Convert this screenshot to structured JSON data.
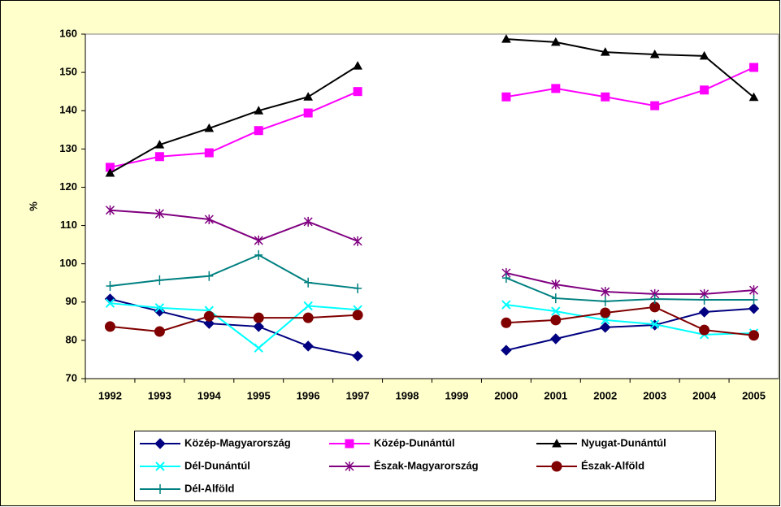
{
  "chart_data": {
    "type": "line",
    "ylabel": "%",
    "categories": [
      "1992",
      "1993",
      "1994",
      "1995",
      "1996",
      "1997",
      "1998",
      "1999",
      "2000",
      "2001",
      "2002",
      "2003",
      "2004",
      "2005"
    ],
    "ylim": [
      70,
      160
    ],
    "yticks": [
      70,
      80,
      90,
      100,
      110,
      120,
      130,
      140,
      150,
      160
    ],
    "series": [
      {
        "name": "Közép-Magyarország",
        "color": "#000080",
        "marker": "diamond",
        "values": [
          90.8,
          87.6,
          84.4,
          83.6,
          78.5,
          75.9,
          null,
          null,
          77.4,
          80.4,
          83.4,
          84.0,
          87.4,
          88.3
        ]
      },
      {
        "name": "Közép-Dunántúl",
        "color": "#FF00FF",
        "marker": "square",
        "values": [
          125.2,
          128.0,
          129.0,
          134.8,
          139.4,
          145.0,
          null,
          null,
          143.6,
          145.8,
          143.6,
          141.3,
          145.4,
          151.3
        ]
      },
      {
        "name": "Nyugat-Dunántúl",
        "color": "#000000",
        "marker": "triangle",
        "values": [
          123.7,
          131.1,
          135.4,
          140.0,
          143.6,
          151.7,
          null,
          null,
          158.7,
          157.9,
          155.3,
          154.7,
          154.3,
          143.5
        ]
      },
      {
        "name": "Dél-Dunántúl",
        "color": "#00FFFF",
        "marker": "x",
        "values": [
          89.7,
          88.5,
          87.8,
          78.0,
          89.0,
          88.0,
          null,
          null,
          89.3,
          87.6,
          85.3,
          84.2,
          81.5,
          81.9
        ]
      },
      {
        "name": "Észak-Magyarország",
        "color": "#800080",
        "marker": "star",
        "values": [
          114.0,
          113.1,
          111.6,
          106.1,
          111.0,
          105.9,
          null,
          null,
          97.6,
          94.6,
          92.7,
          92.1,
          92.1,
          93.1
        ]
      },
      {
        "name": "Észak-Alföld",
        "color": "#800000",
        "marker": "circle",
        "values": [
          83.6,
          82.3,
          86.3,
          85.9,
          85.9,
          86.6,
          null,
          null,
          84.6,
          85.3,
          87.2,
          88.7,
          82.7,
          81.3
        ]
      },
      {
        "name": "Dél-Alföld",
        "color": "#008080",
        "marker": "plus",
        "values": [
          94.2,
          95.7,
          96.8,
          102.3,
          95.1,
          93.6,
          null,
          null,
          96.3,
          91.0,
          90.2,
          90.8,
          90.6,
          90.6
        ]
      }
    ]
  }
}
